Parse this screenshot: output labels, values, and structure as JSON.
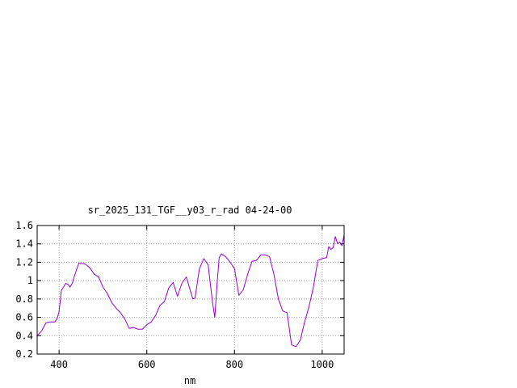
{
  "chart_data": {
    "type": "line",
    "title": "sr_2025_131_TGF__y03_r_rad 04-24-00",
    "xlabel": "nm",
    "ylabel": "",
    "xlim": [
      350,
      1050
    ],
    "ylim": [
      0.2,
      1.6
    ],
    "grid": true,
    "x_ticks": [
      400,
      600,
      800,
      1000
    ],
    "x_tick_labels": [
      "400",
      "600",
      "800",
      "1000"
    ],
    "y_ticks": [
      0.2,
      0.4,
      0.6,
      0.8,
      1.0,
      1.2,
      1.4,
      1.6
    ],
    "y_tick_labels": [
      "0.2",
      "0.4",
      "0.6",
      "0.8",
      "1",
      "1.2",
      "1.4",
      "1.6"
    ],
    "line_color": "#9400d3",
    "series": [
      {
        "x": [
          350,
          360,
          370,
          380,
          390,
          395,
          400,
          405,
          410,
          415,
          420,
          425,
          430,
          435,
          440,
          445,
          450,
          460,
          470,
          480,
          490,
          500,
          510,
          520,
          530,
          540,
          550,
          560,
          570,
          580,
          590,
          600,
          610,
          620,
          630,
          640,
          650,
          660,
          670,
          680,
          690,
          700,
          705,
          710,
          720,
          730,
          740,
          750,
          755,
          760,
          765,
          770,
          780,
          790,
          800,
          810,
          820,
          830,
          840,
          850,
          860,
          870,
          880,
          890,
          900,
          910,
          920,
          930,
          940,
          950,
          960,
          970,
          980,
          990,
          1000,
          1010,
          1015,
          1020,
          1025,
          1030,
          1035,
          1040,
          1045,
          1050
        ],
        "y": [
          0.4,
          0.45,
          0.54,
          0.55,
          0.55,
          0.58,
          0.66,
          0.89,
          0.93,
          0.97,
          0.96,
          0.93,
          0.97,
          1.05,
          1.12,
          1.19,
          1.19,
          1.18,
          1.14,
          1.07,
          1.04,
          0.93,
          0.86,
          0.76,
          0.7,
          0.65,
          0.58,
          0.48,
          0.49,
          0.47,
          0.47,
          0.52,
          0.55,
          0.62,
          0.73,
          0.77,
          0.92,
          0.98,
          0.83,
          0.97,
          1.04,
          0.88,
          0.8,
          0.81,
          1.13,
          1.24,
          1.17,
          0.76,
          0.6,
          0.95,
          1.25,
          1.29,
          1.26,
          1.2,
          1.13,
          0.84,
          0.9,
          1.07,
          1.21,
          1.22,
          1.28,
          1.28,
          1.26,
          1.07,
          0.8,
          0.67,
          0.65,
          0.3,
          0.28,
          0.35,
          0.55,
          0.72,
          0.93,
          1.22,
          1.24,
          1.25,
          1.37,
          1.34,
          1.36,
          1.48,
          1.4,
          1.42,
          1.38,
          1.5
        ]
      }
    ]
  }
}
